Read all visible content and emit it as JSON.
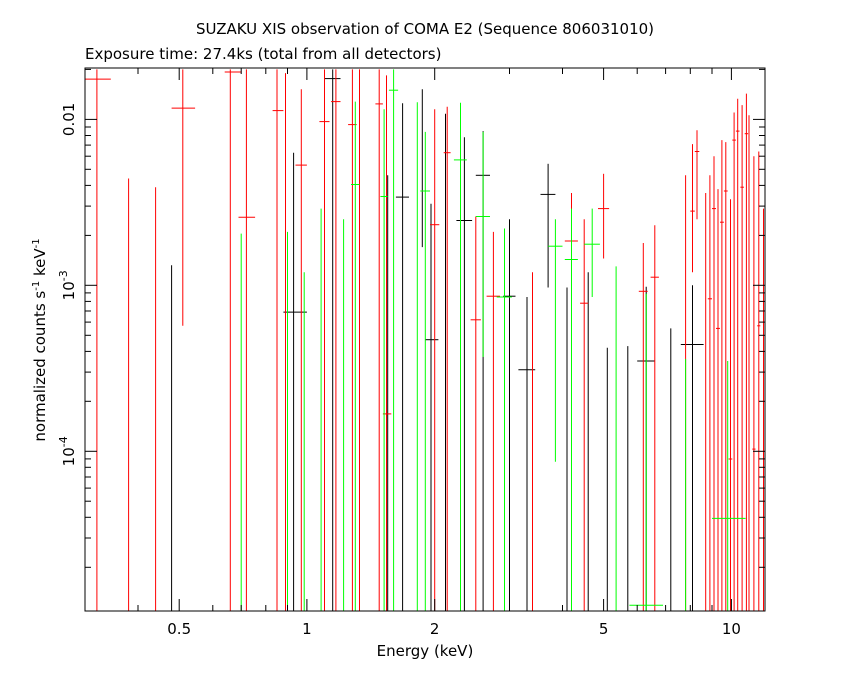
{
  "chart_data": {
    "type": "scatter",
    "title": "SUZAKU XIS observation of COMA E2 (Sequence 806031010)",
    "subtitle": "Exposure time: 27.4ks (total from all detectors)",
    "xlabel": "Energy (keV)",
    "ylabel": "normalized counts s",
    "ylabel_sup1": "-1",
    "ylabel_mid": " keV",
    "ylabel_sup2": "-1",
    "x_scale": "log",
    "y_scale": "log",
    "xlim": [
      0.3,
      12.0
    ],
    "ylim": [
      1.09e-05,
      0.0204
    ],
    "x_ticks": [
      {
        "value": 0.5,
        "label": "0.5"
      },
      {
        "value": 1,
        "label": "1"
      },
      {
        "value": 2,
        "label": "2"
      },
      {
        "value": 5,
        "label": "5"
      },
      {
        "value": 10,
        "label": "10"
      }
    ],
    "y_ticks": [
      {
        "value": 0.0001,
        "label": "10",
        "sup": "-4"
      },
      {
        "value": 0.001,
        "label": "10",
        "sup": "-3"
      },
      {
        "value": 0.01,
        "label": "0.01",
        "sup": ""
      }
    ],
    "grid": false,
    "legend": "none",
    "series": [
      {
        "color": "#000000",
        "points": [
          {
            "x": 0.48,
            "y": 1e-05,
            "ylo": 1e-05,
            "yhi": 0.00132
          },
          {
            "x": 0.93,
            "y": 0.00069,
            "xlo": 0.88,
            "xhi": 1.0,
            "ylo": 1e-05,
            "yhi": 0.0063
          },
          {
            "x": 1.15,
            "y": 0.0176,
            "xlo": 1.1,
            "xhi": 1.2,
            "ylo": 1e-05,
            "yhi": 0.02
          },
          {
            "x": 1.55,
            "y": 0.00091,
            "ylo": 1e-05,
            "yhi": 0.0046
          },
          {
            "x": 1.68,
            "y": 0.0034,
            "xlo": 1.62,
            "xhi": 1.74,
            "ylo": 1e-05,
            "yhi": 0.0125
          },
          {
            "x": 1.87,
            "y": 0.0061,
            "ylo": 0.0017,
            "yhi": 0.0152
          },
          {
            "x": 1.96,
            "y": 0.00047,
            "xlo": 1.9,
            "xhi": 2.04,
            "ylo": 1e-05,
            "yhi": 0.0031
          },
          {
            "x": 2.12,
            "y": 0.0049,
            "ylo": 1e-05,
            "yhi": 0.0108
          },
          {
            "x": 2.35,
            "y": 0.00246,
            "xlo": 2.25,
            "xhi": 2.45,
            "ylo": 1e-05,
            "yhi": 0.0078
          },
          {
            "x": 2.6,
            "y": 0.0046,
            "xlo": 2.5,
            "xhi": 2.7,
            "ylo": 1e-05,
            "yhi": 0.0085
          },
          {
            "x": 3.0,
            "y": 0.00086,
            "xlo": 2.9,
            "xhi": 3.1,
            "ylo": 1e-05,
            "yhi": 0.0025
          },
          {
            "x": 3.3,
            "y": 0.00031,
            "xlo": 3.15,
            "xhi": 3.45,
            "ylo": 1e-05,
            "yhi": 0.00085
          },
          {
            "x": 3.7,
            "y": 0.00353,
            "xlo": 3.55,
            "xhi": 3.85,
            "ylo": 0.00097,
            "yhi": 0.0054
          },
          {
            "x": 4.1,
            "y": 1e-05,
            "ylo": 1e-05,
            "yhi": 0.00097
          },
          {
            "x": 4.6,
            "y": 1e-05,
            "ylo": 1e-05,
            "yhi": 0.0012
          },
          {
            "x": 5.1,
            "y": 1e-05,
            "ylo": 1e-05,
            "yhi": 0.00042
          },
          {
            "x": 5.7,
            "y": 1e-05,
            "ylo": 1e-05,
            "yhi": 0.00043
          },
          {
            "x": 6.3,
            "y": 0.00035,
            "xlo": 6.0,
            "xhi": 6.6,
            "ylo": 1e-05,
            "yhi": 0.00098
          },
          {
            "x": 7.2,
            "y": 1e-05,
            "ylo": 1e-05,
            "yhi": 0.00055
          },
          {
            "x": 8.1,
            "y": 0.00044,
            "xlo": 7.6,
            "xhi": 8.6,
            "ylo": 1e-05,
            "yhi": 0.001
          }
        ]
      },
      {
        "color": "#ff0000",
        "points": [
          {
            "x": 0.32,
            "y": 0.0175,
            "xlo": 0.3,
            "xhi": 0.345,
            "ylo": 1e-05,
            "yhi": 0.02
          },
          {
            "x": 0.38,
            "y": 1e-05,
            "ylo": 1e-05,
            "yhi": 0.0044
          },
          {
            "x": 0.44,
            "y": 1e-05,
            "ylo": 1e-05,
            "yhi": 0.0039
          },
          {
            "x": 0.51,
            "y": 0.0117,
            "xlo": 0.48,
            "xhi": 0.545,
            "ylo": 0.00057,
            "yhi": 0.02
          },
          {
            "x": 0.66,
            "y": 0.0193,
            "xlo": 0.64,
            "xhi": 0.7,
            "ylo": 1e-05,
            "yhi": 0.02
          },
          {
            "x": 0.72,
            "y": 0.00257,
            "xlo": 0.69,
            "xhi": 0.755,
            "ylo": 1e-05,
            "yhi": 0.02
          },
          {
            "x": 0.85,
            "y": 0.0113,
            "xlo": 0.83,
            "xhi": 0.88,
            "ylo": 1e-05,
            "yhi": 0.02
          },
          {
            "x": 0.89,
            "y": 1e-05,
            "ylo": 1e-05,
            "yhi": 0.019
          },
          {
            "x": 0.97,
            "y": 0.0053,
            "xlo": 0.94,
            "xhi": 1.0,
            "ylo": 1e-05,
            "yhi": 0.0152
          },
          {
            "x": 1.1,
            "y": 0.0097,
            "xlo": 1.07,
            "xhi": 1.13,
            "ylo": 1e-05,
            "yhi": 0.02
          },
          {
            "x": 1.17,
            "y": 0.0128,
            "xlo": 1.14,
            "xhi": 1.2,
            "ylo": 1e-05,
            "yhi": 0.02
          },
          {
            "x": 1.28,
            "y": 0.0093,
            "xlo": 1.25,
            "xhi": 1.31,
            "ylo": 1e-05,
            "yhi": 0.02
          },
          {
            "x": 1.33,
            "y": 1e-05,
            "ylo": 1e-05,
            "yhi": 0.02
          },
          {
            "x": 1.48,
            "y": 0.0124,
            "xlo": 1.45,
            "xhi": 1.51,
            "ylo": 1e-05,
            "yhi": 0.02
          },
          {
            "x": 1.54,
            "y": 0.000168,
            "xlo": 1.51,
            "xhi": 1.58,
            "ylo": 1e-05,
            "yhi": 0.0184
          },
          {
            "x": 2.0,
            "y": 0.00232,
            "xlo": 1.95,
            "xhi": 2.05,
            "ylo": 1e-05,
            "yhi": 0.0115
          },
          {
            "x": 2.14,
            "y": 0.0063,
            "xlo": 2.1,
            "xhi": 2.18,
            "ylo": 1e-05,
            "yhi": 0.0119
          },
          {
            "x": 2.5,
            "y": 0.00062,
            "xlo": 2.43,
            "xhi": 2.57,
            "ylo": 1e-05,
            "yhi": 0.0026
          },
          {
            "x": 2.75,
            "y": 0.00086,
            "xlo": 2.65,
            "xhi": 2.85,
            "ylo": 1e-05,
            "yhi": 0.0021
          },
          {
            "x": 3.4,
            "y": 1e-05,
            "ylo": 1e-05,
            "yhi": 0.0012
          },
          {
            "x": 4.2,
            "y": 0.00185,
            "xlo": 4.05,
            "xhi": 4.35,
            "ylo": 0.00016,
            "yhi": 0.0036
          },
          {
            "x": 4.5,
            "y": 0.00078,
            "xlo": 4.4,
            "xhi": 4.6,
            "ylo": 1e-05,
            "yhi": 0.0025
          },
          {
            "x": 5.0,
            "y": 0.0029,
            "xlo": 4.85,
            "xhi": 5.15,
            "ylo": 0.00145,
            "yhi": 0.0047
          },
          {
            "x": 6.2,
            "y": 0.00092,
            "xlo": 6.05,
            "xhi": 6.35,
            "ylo": 1e-05,
            "yhi": 0.0018
          },
          {
            "x": 6.6,
            "y": 0.00112,
            "xlo": 6.45,
            "xhi": 6.75,
            "ylo": 1e-05,
            "yhi": 0.0023
          },
          {
            "x": 7.8,
            "y": 1e-05,
            "ylo": 1e-05,
            "yhi": 0.0046
          },
          {
            "x": 8.1,
            "y": 0.0028,
            "xlo": 8.0,
            "xhi": 8.2,
            "ylo": 0.0012,
            "yhi": 0.0071
          },
          {
            "x": 8.3,
            "y": 0.0064,
            "xlo": 8.2,
            "xhi": 8.4,
            "ylo": 0.0025,
            "yhi": 0.0086
          },
          {
            "x": 8.7,
            "y": 1e-05,
            "ylo": 1e-05,
            "yhi": 0.0036
          },
          {
            "x": 8.9,
            "y": 0.00083,
            "xlo": 8.8,
            "xhi": 9.0,
            "ylo": 1e-05,
            "yhi": 0.0046
          },
          {
            "x": 9.1,
            "y": 0.0029,
            "xlo": 9.0,
            "xhi": 9.2,
            "ylo": 1e-05,
            "yhi": 0.006
          },
          {
            "x": 9.3,
            "y": 0.00055,
            "xlo": 9.2,
            "xhi": 9.4,
            "ylo": 1e-05,
            "yhi": 0.0038
          },
          {
            "x": 9.5,
            "y": 0.0024,
            "xlo": 9.4,
            "xhi": 9.6,
            "ylo": 1e-05,
            "yhi": 0.0075
          },
          {
            "x": 9.7,
            "y": 0.0037,
            "xlo": 9.6,
            "xhi": 9.8,
            "ylo": 1e-05,
            "yhi": 0.0073
          },
          {
            "x": 9.95,
            "y": 8.98e-05,
            "xlo": 9.85,
            "xhi": 10.05,
            "ylo": 1e-05,
            "yhi": 0.0033
          },
          {
            "x": 10.15,
            "y": 0.0075,
            "xlo": 10.05,
            "xhi": 10.25,
            "ylo": 1e-05,
            "yhi": 0.011
          },
          {
            "x": 10.35,
            "y": 0.0085,
            "xlo": 10.25,
            "xhi": 10.45,
            "ylo": 1e-05,
            "yhi": 0.0133
          },
          {
            "x": 10.6,
            "y": 0.0039,
            "xlo": 10.5,
            "xhi": 10.7,
            "ylo": 1e-05,
            "yhi": 0.0122
          },
          {
            "x": 10.85,
            "y": 0.0082,
            "xlo": 10.75,
            "xhi": 10.95,
            "ylo": 1e-05,
            "yhi": 0.0143
          },
          {
            "x": 11.0,
            "y": 1e-05,
            "ylo": 1e-05,
            "yhi": 0.0106
          },
          {
            "x": 11.3,
            "y": 0.000103,
            "xlo": 11.2,
            "xhi": 11.4,
            "ylo": 1e-05,
            "yhi": 0.006
          },
          {
            "x": 11.6,
            "y": 0.00057,
            "xlo": 11.5,
            "xhi": 11.7,
            "ylo": 1e-05,
            "yhi": 0.0064
          },
          {
            "x": 11.9,
            "y": 1e-05,
            "ylo": 1e-05,
            "yhi": 0.0029
          }
        ]
      },
      {
        "color": "#00ff00",
        "points": [
          {
            "x": 0.7,
            "y": 1e-05,
            "ylo": 1e-05,
            "yhi": 0.00205
          },
          {
            "x": 0.9,
            "y": 1e-05,
            "ylo": 1e-05,
            "yhi": 0.0021
          },
          {
            "x": 0.985,
            "y": 1e-05,
            "ylo": 1e-05,
            "yhi": 0.0012
          },
          {
            "x": 1.08,
            "y": 1e-05,
            "ylo": 1e-05,
            "yhi": 0.0029
          },
          {
            "x": 1.22,
            "y": 1e-05,
            "ylo": 1e-05,
            "yhi": 0.0025
          },
          {
            "x": 1.3,
            "y": 0.00405,
            "xlo": 1.27,
            "xhi": 1.33,
            "ylo": 1e-05,
            "yhi": 0.0128
          },
          {
            "x": 1.52,
            "y": 0.00343,
            "xlo": 1.49,
            "xhi": 1.55,
            "ylo": 1e-05,
            "yhi": 0.0115
          },
          {
            "x": 1.6,
            "y": 0.015,
            "xlo": 1.56,
            "xhi": 1.64,
            "ylo": 1e-05,
            "yhi": 0.02
          },
          {
            "x": 1.82,
            "y": 1e-05,
            "ylo": 1e-05,
            "yhi": 0.0127
          },
          {
            "x": 1.9,
            "y": 0.0037,
            "xlo": 1.85,
            "xhi": 1.95,
            "ylo": 1e-05,
            "yhi": 0.0084
          },
          {
            "x": 2.3,
            "y": 0.0057,
            "xlo": 2.22,
            "xhi": 2.38,
            "ylo": 1e-05,
            "yhi": 0.0126
          },
          {
            "x": 2.6,
            "y": 0.0026,
            "xlo": 2.5,
            "xhi": 2.7,
            "ylo": 0.00037,
            "yhi": 0.0084
          },
          {
            "x": 2.92,
            "y": 0.00085,
            "xlo": 2.8,
            "xhi": 3.04,
            "ylo": 1e-05,
            "yhi": 0.0022
          },
          {
            "x": 3.85,
            "y": 0.00172,
            "xlo": 3.7,
            "xhi": 4.0,
            "ylo": 8.64e-05,
            "yhi": 0.0025
          },
          {
            "x": 4.2,
            "y": 0.00143,
            "xlo": 4.05,
            "xhi": 4.35,
            "ylo": 1e-05,
            "yhi": 0.0029
          },
          {
            "x": 4.7,
            "y": 0.00177,
            "xlo": 4.5,
            "xhi": 4.9,
            "ylo": 0.00085,
            "yhi": 0.0029
          },
          {
            "x": 5.35,
            "y": 1e-05,
            "ylo": 1e-05,
            "yhi": 0.0013
          },
          {
            "x": 6.3,
            "y": 1.18e-05,
            "xlo": 5.75,
            "xhi": 6.9,
            "ylo": 1e-05,
            "yhi": 0.00089
          },
          {
            "x": 7.8,
            "y": 1e-05,
            "ylo": 1e-05,
            "yhi": 0.00036
          },
          {
            "x": 9.8,
            "y": 3.94e-05,
            "xlo": 9.0,
            "xhi": 10.8,
            "ylo": 1e-05,
            "yhi": 0.00035
          }
        ]
      }
    ]
  }
}
